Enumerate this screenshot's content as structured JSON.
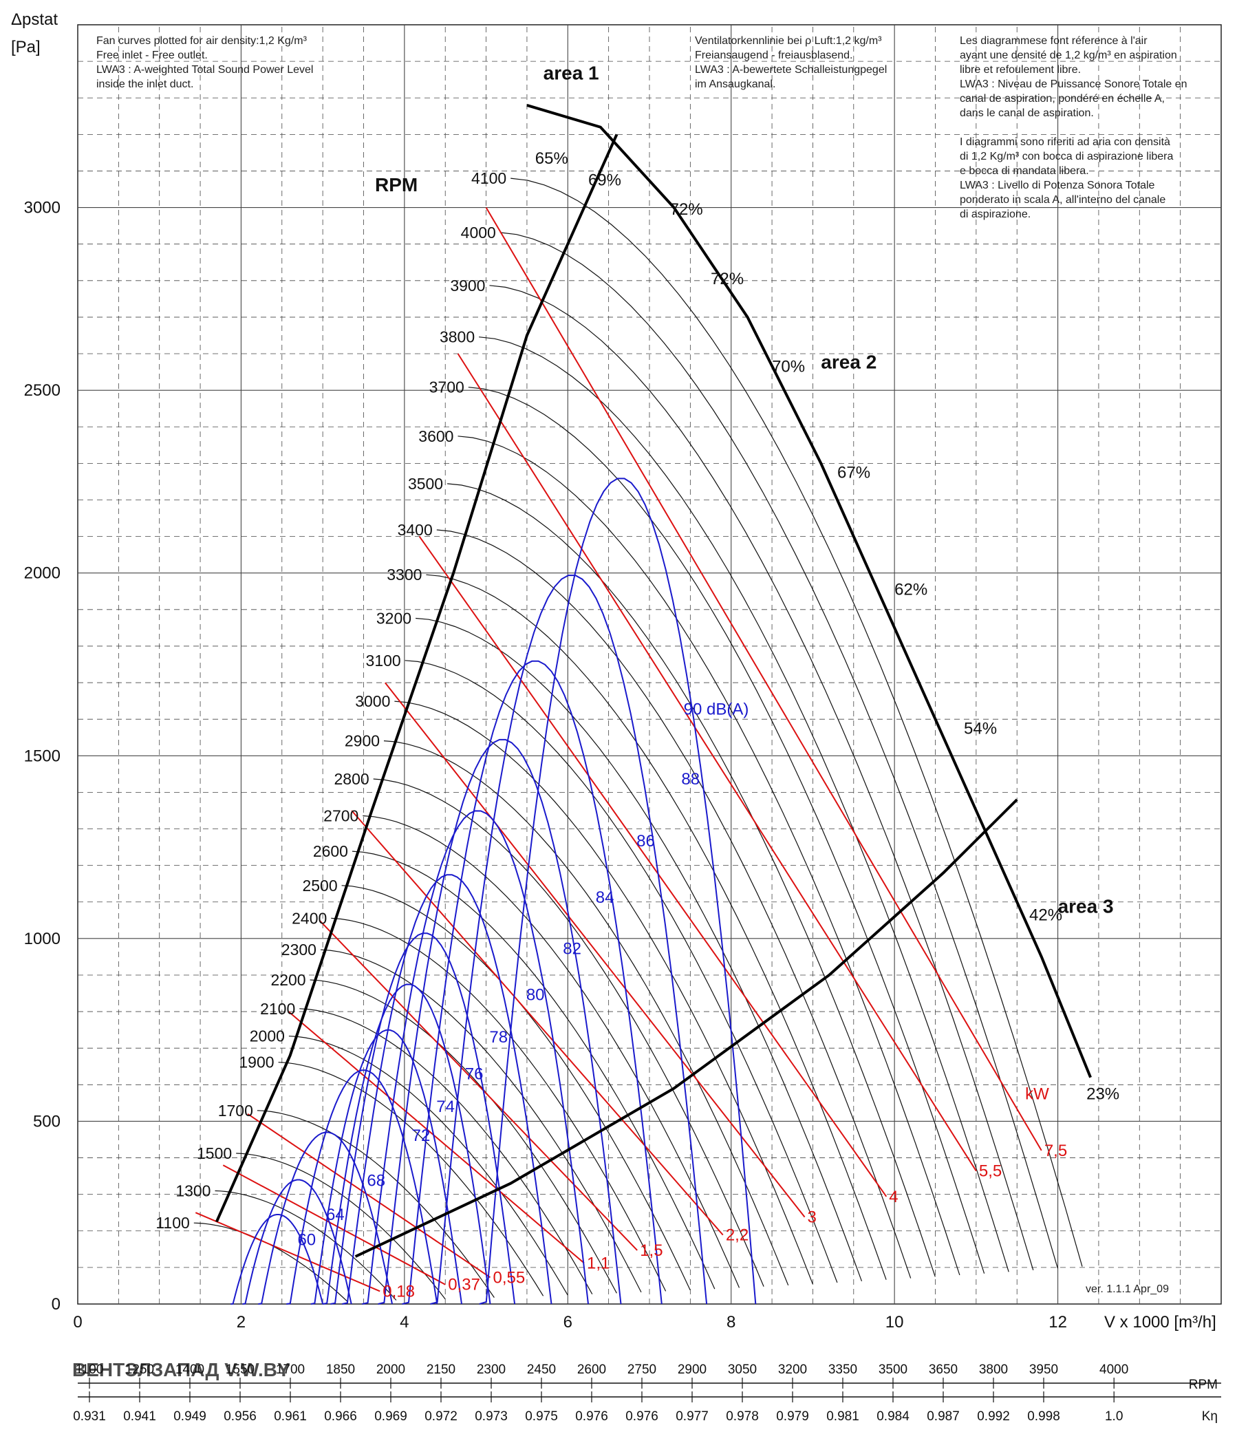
{
  "chart_data": {
    "type": "line",
    "title": "",
    "ylabel": "Δpstat",
    "yunit": "[Pa]",
    "xlabel": "V x 1000",
    "xunit": "[m³/h]",
    "xlim": [
      0,
      14
    ],
    "ylim": [
      0,
      3500
    ],
    "x_ticks": [
      "0",
      "2",
      "4",
      "6",
      "8",
      "10",
      "12"
    ],
    "y_ticks": [
      "0",
      "500",
      "1000",
      "1500",
      "2000",
      "2500",
      "3000"
    ],
    "grid": true,
    "notes": {
      "en": [
        "Fan curves plotted for air density:1,2 Kg/m³",
        "Free inlet - Free outlet.",
        "LWA3 : A-weighted Total Sound Power Level",
        "inside the inlet duct."
      ],
      "de": [
        "Ventilatorkennlinie bei ρ Luft:1,2 kg/m³",
        "Freiansaugend - freiausblasend.",
        "LWA3 : A-bewertete Schalleistungpegel",
        "im Ansaugkanal."
      ],
      "fr_it": [
        "Les diagrammese font réference à l'air",
        "ayant une densité de 1,2 kg/m³ en aspiration",
        "libre et refoulement libre.",
        "LWA3 : Niveau de Puissance Sonore Totale en",
        "canal de aspiration, pondéré en échelle A,",
        "dans le canal de aspiration.",
        "",
        "I diagrammi sono riferiti ad aria con densità",
        "di 1,2 Kg/m³ con bocca di aspirazione libera",
        "e bocca di mandata libera.",
        "LWA3 : Livello di Potenza Sonora Totale",
        "ponderato in scala A, all'interno del canale",
        "di aspirazione."
      ]
    },
    "rpm_heading": "RPM",
    "rpm_curves": [
      {
        "label": "1100",
        "rpm": 1100
      },
      {
        "label": "1300",
        "rpm": 1300
      },
      {
        "label": "1500",
        "rpm": 1500
      },
      {
        "label": "1700",
        "rpm": 1700
      },
      {
        "label": "1900",
        "rpm": 1900
      },
      {
        "label": "2000",
        "rpm": 2000
      },
      {
        "label": "2100",
        "rpm": 2100
      },
      {
        "label": "2200",
        "rpm": 2200
      },
      {
        "label": "2300",
        "rpm": 2300
      },
      {
        "label": "2400",
        "rpm": 2400
      },
      {
        "label": "2500",
        "rpm": 2500
      },
      {
        "label": "2600",
        "rpm": 2600
      },
      {
        "label": "2700",
        "rpm": 2700
      },
      {
        "label": "2800",
        "rpm": 2800
      },
      {
        "label": "2900",
        "rpm": 2900
      },
      {
        "label": "3000",
        "rpm": 3000
      },
      {
        "label": "3100",
        "rpm": 3100
      },
      {
        "label": "3200",
        "rpm": 3200
      },
      {
        "label": "3300",
        "rpm": 3300
      },
      {
        "label": "3400",
        "rpm": 3400
      },
      {
        "label": "3500",
        "rpm": 3500
      },
      {
        "label": "3600",
        "rpm": 3600
      },
      {
        "label": "3700",
        "rpm": 3700
      },
      {
        "label": "3800",
        "rpm": 3800
      },
      {
        "label": "3900",
        "rpm": 3900
      },
      {
        "label": "4000",
        "rpm": 4000
      },
      {
        "label": "4100",
        "rpm": 4100
      }
    ],
    "efficiency_labels": [
      {
        "label": "65%",
        "x": 5.6,
        "y": 3120
      },
      {
        "label": "69%",
        "x": 6.25,
        "y": 3060
      },
      {
        "label": "72%",
        "x": 7.25,
        "y": 2980
      },
      {
        "label": "72%",
        "x": 7.75,
        "y": 2790
      },
      {
        "label": "70%",
        "x": 8.5,
        "y": 2550
      },
      {
        "label": "67%",
        "x": 9.3,
        "y": 2260
      },
      {
        "label": "62%",
        "x": 10.0,
        "y": 1940
      },
      {
        "label": "54%",
        "x": 10.85,
        "y": 1560
      },
      {
        "label": "42%",
        "x": 11.65,
        "y": 1050
      },
      {
        "label": "23%",
        "x": 12.35,
        "y": 560
      }
    ],
    "sound_curves": [
      {
        "label": "60",
        "peak_x": 2.45,
        "peak_y": 245,
        "right_x": 3.0
      },
      {
        "label": "64",
        "peak_x": 2.7,
        "peak_y": 340,
        "right_x": 3.35
      },
      {
        "label": "68",
        "peak_x": 3.05,
        "peak_y": 470,
        "right_x": 3.85
      },
      {
        "label": "72",
        "peak_x": 3.5,
        "peak_y": 640,
        "right_x": 4.4
      },
      {
        "label": "74",
        "peak_x": 3.8,
        "peak_y": 750,
        "right_x": 4.7
      },
      {
        "label": "76",
        "peak_x": 4.05,
        "peak_y": 875,
        "right_x": 5.05
      },
      {
        "label": "78",
        "peak_x": 4.25,
        "peak_y": 1015,
        "right_x": 5.35
      },
      {
        "label": "80",
        "peak_x": 4.55,
        "peak_y": 1175,
        "right_x": 5.8
      },
      {
        "label": "82",
        "peak_x": 4.9,
        "peak_y": 1350,
        "right_x": 6.25
      },
      {
        "label": "84",
        "peak_x": 5.2,
        "peak_y": 1545,
        "right_x": 6.65
      },
      {
        "label": "86",
        "peak_x": 5.6,
        "peak_y": 1760,
        "right_x": 7.15
      },
      {
        "label": "88",
        "peak_x": 6.05,
        "peak_y": 1995,
        "right_x": 7.7
      },
      {
        "label": "90 dB(A)",
        "peak_x": 6.65,
        "peak_y": 2260,
        "right_x": 8.3
      }
    ],
    "power_unit": "kW",
    "power_lines": [
      {
        "label": "0,18",
        "y_start": 250,
        "x_end": 3.7
      },
      {
        "label": "0,37",
        "y_start": 380,
        "x_end": 4.5
      },
      {
        "label": "0,55",
        "y_start": 520,
        "x_end": 5.05
      },
      {
        "label": "1,1",
        "y_start": 800,
        "x_end": 6.2
      },
      {
        "label": "1,5",
        "y_start": 1050,
        "x_end": 6.85
      },
      {
        "label": "2,2",
        "y_start": 1350,
        "x_end": 7.9
      },
      {
        "label": "3",
        "y_start": 1700,
        "x_end": 8.9
      },
      {
        "label": "4",
        "y_start": 2100,
        "x_end": 9.9
      },
      {
        "label": "5,5",
        "y_start": 2600,
        "x_end": 11.0
      },
      {
        "label": "7,5",
        "y_start": 3000,
        "x_end": 11.8
      }
    ],
    "areas": [
      {
        "label": "area 1",
        "x": 5.7,
        "y": 3350
      },
      {
        "label": "area 2",
        "x": 9.1,
        "y": 2560
      },
      {
        "label": "area 3",
        "x": 12.0,
        "y": 1070
      }
    ],
    "boundary": {
      "outer": [
        [
          5.5,
          3280
        ],
        [
          6.4,
          3220
        ],
        [
          7.3,
          3000
        ],
        [
          8.2,
          2700
        ],
        [
          9.1,
          2300
        ],
        [
          9.9,
          1900
        ],
        [
          10.6,
          1550
        ],
        [
          11.2,
          1250
        ],
        [
          11.8,
          950
        ],
        [
          12.4,
          620
        ]
      ],
      "line_area1": [
        [
          1.7,
          225
        ],
        [
          2.6,
          680
        ],
        [
          3.6,
          1350
        ],
        [
          4.6,
          2000
        ],
        [
          5.5,
          2650
        ],
        [
          6.6,
          3200
        ]
      ],
      "line_area3": [
        [
          3.4,
          130
        ],
        [
          5.3,
          330
        ],
        [
          7.3,
          590
        ],
        [
          9.2,
          900
        ],
        [
          10.6,
          1180
        ],
        [
          11.5,
          1380
        ]
      ]
    },
    "scale_rpm": {
      "label": "RPM",
      "ticks": [
        "1100",
        "1250",
        "1400",
        "1550",
        "1700",
        "1850",
        "2000",
        "2150",
        "2300",
        "2450",
        "2600",
        "2750",
        "2900",
        "3050",
        "3200",
        "3350",
        "3500",
        "3650",
        "3800",
        "3950",
        "4000"
      ]
    },
    "scale_k": {
      "label": "Kη",
      "ticks": [
        "0.931",
        "0.941",
        "0.949",
        "0.956",
        "0.961",
        "0.966",
        "0.969",
        "0.972",
        "0.973",
        "0.975",
        "0.976",
        "0.976",
        "0.977",
        "0.978",
        "0.979",
        "0.981",
        "0.984",
        "0.987",
        "0.992",
        "0.998",
        "1.0"
      ]
    },
    "version": "ver. 1.1.1 Apr_09",
    "watermark": "ВЕНТЭЛЗАПАД  V.W.BY",
    "colors": {
      "rpm_curves": "#111111",
      "sound_curves": "#1a1acc",
      "power_lines": "#dd1111",
      "grid": "#333333"
    }
  }
}
